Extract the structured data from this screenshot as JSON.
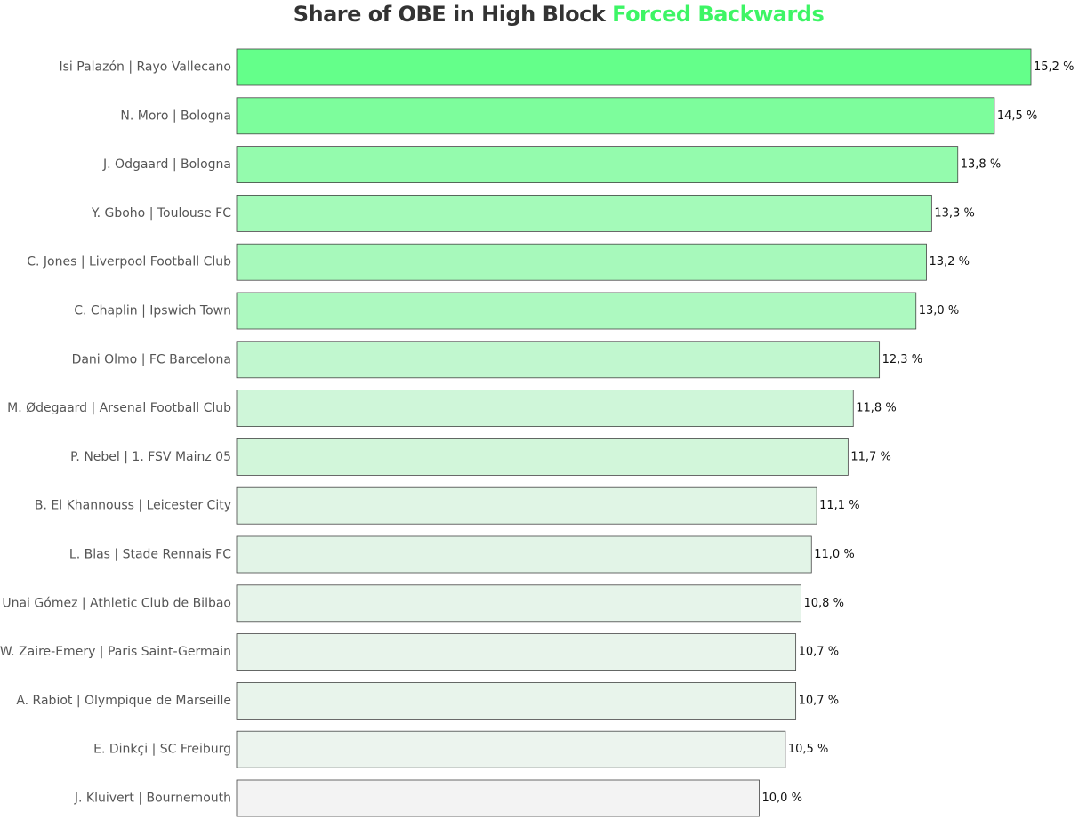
{
  "chart_data": {
    "type": "bar",
    "orientation": "horizontal",
    "title": "Share of OBE in High Block",
    "title_highlight": "Forced Backwards",
    "categories": [
      "Isi Palazón | Rayo Vallecano",
      "N. Moro | Bologna",
      "J. Odgaard | Bologna",
      "Y. Gboho | Toulouse FC",
      "C. Jones | Liverpool Football Club",
      "C. Chaplin | Ipswich Town",
      "Dani Olmo | FC Barcelona",
      "M. Ødegaard | Arsenal Football Club",
      "P. Nebel | 1. FSV Mainz 05",
      "B. El Khannouss | Leicester City",
      "L. Blas | Stade Rennais FC",
      "Unai Gómez | Athletic Club de Bilbao",
      "W. Zaire-Emery | Paris Saint-Germain",
      "A. Rabiot | Olympique de Marseille",
      "E. Dinkçi | SC Freiburg",
      "J. Kluivert | Bournemouth"
    ],
    "values": [
      15.2,
      14.5,
      13.8,
      13.3,
      13.2,
      13.0,
      12.3,
      11.8,
      11.7,
      11.1,
      11.0,
      10.8,
      10.7,
      10.7,
      10.5,
      10.0
    ],
    "value_labels": [
      "15,2 %",
      "14,5 %",
      "13,8 %",
      "13,3 %",
      "13,2 %",
      "13,0 %",
      "12,3 %",
      "11,8 %",
      "11,7 %",
      "11,1 %",
      "11,0 %",
      "10,8 %",
      "10,7 %",
      "10,7 %",
      "10,5 %",
      "10,0 %"
    ],
    "xlim": [
      0,
      15.2
    ],
    "grid": false,
    "legend": "none",
    "colors": {
      "title": "#333333",
      "title_highlight": "#3df565",
      "bar_high": "#64ff8a",
      "bar_low": "#f3f3f3",
      "bar_stroke": "#444444",
      "category_text": "#555555",
      "value_text": "#111111"
    }
  }
}
